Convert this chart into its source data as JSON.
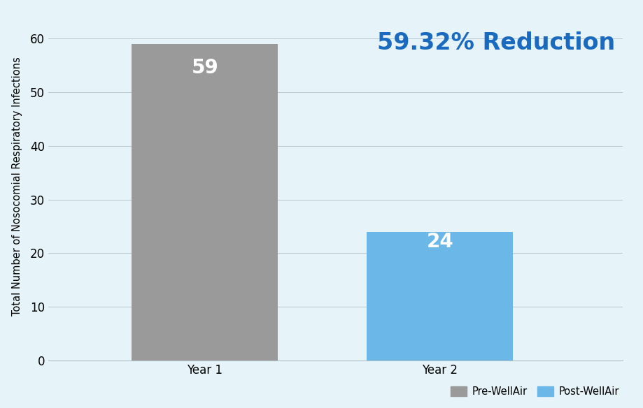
{
  "categories": [
    "Year 1",
    "Year 2"
  ],
  "values": [
    59,
    24
  ],
  "bar_colors": [
    "#9A9A9A",
    "#6BB8E8"
  ],
  "background_color": "#E6F3F8",
  "ylabel": "Total Number of Nosocomial Respiratory Infections",
  "ylim": [
    0,
    65
  ],
  "yticks": [
    0,
    10,
    20,
    30,
    40,
    50,
    60
  ],
  "annotation_text": "59.32% Reduction",
  "annotation_color": "#1A6BBF",
  "bar_label_color": "#FFFFFF",
  "bar_label_fontsize": 20,
  "annotation_fontsize": 24,
  "ylabel_fontsize": 10.5,
  "tick_fontsize": 12,
  "legend_labels": [
    "Pre-WellAir",
    "Post-WellAir"
  ],
  "legend_colors": [
    "#9A9A9A",
    "#6BB8E8"
  ],
  "grid_color": "#B8C8D0",
  "axis_color": "#B0C0C8",
  "bar_width": 0.28,
  "x_positions": [
    0.3,
    0.75
  ],
  "xlim": [
    0.0,
    1.1
  ]
}
